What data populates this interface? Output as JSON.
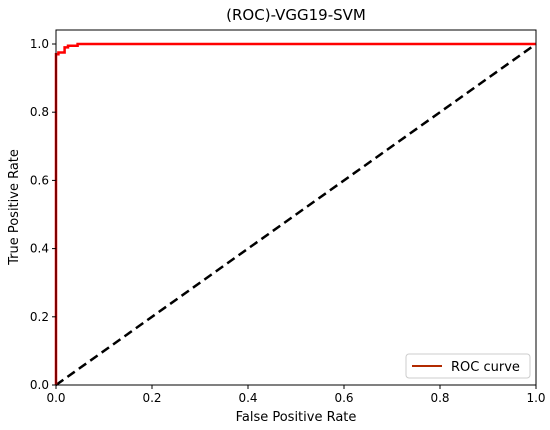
{
  "chart_data": {
    "type": "line",
    "title": "(ROC)-VGG19-SVM",
    "xlabel": "False Positive Rate",
    "ylabel": "True Positive Rate",
    "xlim": [
      0.0,
      1.0
    ],
    "ylim": [
      0.0,
      1.0
    ],
    "xticks": [
      "0.0",
      "0.2",
      "0.4",
      "0.6",
      "0.8",
      "1.0"
    ],
    "yticks": [
      "0.0",
      "0.2",
      "0.4",
      "0.6",
      "0.8",
      "1.0"
    ],
    "grid": false,
    "legend_position": "lower right",
    "series": [
      {
        "name": "ROC curve",
        "color": "#ff0000",
        "style": "solid",
        "x": [
          0.0,
          0.0,
          0.005,
          0.005,
          0.018,
          0.018,
          0.025,
          0.025,
          0.045,
          0.045,
          1.0
        ],
        "y": [
          0.0,
          0.97,
          0.97,
          0.975,
          0.975,
          0.99,
          0.99,
          0.995,
          0.995,
          1.0,
          1.0
        ]
      },
      {
        "color": "#000000",
        "style": "dashed",
        "x": [
          0.0,
          1.0
        ],
        "y": [
          0.0,
          1.0
        ]
      }
    ],
    "legend_line_color": "#b22a00"
  }
}
